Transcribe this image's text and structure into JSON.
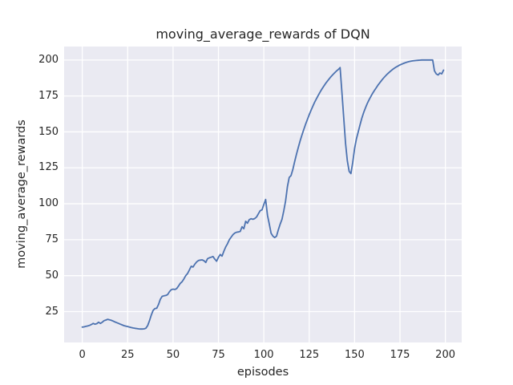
{
  "chart_data": {
    "type": "line",
    "title": "moving_average_rewards of DQN",
    "xlabel": "episodes",
    "ylabel": "moving_average_rewards",
    "x_ticks": [
      0,
      25,
      50,
      75,
      100,
      125,
      150,
      175,
      200
    ],
    "y_ticks": [
      25,
      50,
      75,
      100,
      125,
      150,
      175,
      200
    ],
    "xlim": [
      -10,
      209
    ],
    "ylim": [
      3.5,
      209.4
    ],
    "grid": true,
    "legend": false,
    "colors": {
      "line": "#4c72b0",
      "axes_background": "#eaeaf2",
      "grid": "#ffffff",
      "figure_background": "#ffffff",
      "text": "#262626"
    },
    "series": [
      {
        "name": "moving_average_rewards",
        "x0": 0,
        "dx": 1,
        "y": [
          14.2,
          14.4,
          14.7,
          15.0,
          15.4,
          16.0,
          16.8,
          16.2,
          16.6,
          17.6,
          16.8,
          17.6,
          18.7,
          19.1,
          19.6,
          19.3,
          18.9,
          18.4,
          17.8,
          17.3,
          16.8,
          16.2,
          15.7,
          15.2,
          14.9,
          14.6,
          14.2,
          13.9,
          13.6,
          13.4,
          13.2,
          13.0,
          12.9,
          12.9,
          13.0,
          13.4,
          15.2,
          18.5,
          22.5,
          25.8,
          27.1,
          27.3,
          30.0,
          33.5,
          35.6,
          36.0,
          36.2,
          36.8,
          38.8,
          40.2,
          40.6,
          40.4,
          41.0,
          42.8,
          44.6,
          45.8,
          47.8,
          50.0,
          51.5,
          54.0,
          56.5,
          56.0,
          58.0,
          59.5,
          60.5,
          60.8,
          61.0,
          60.4,
          59.2,
          61.8,
          62.4,
          62.8,
          63.3,
          61.5,
          60.0,
          62.8,
          64.7,
          63.6,
          67.0,
          70.0,
          72.2,
          75.0,
          76.8,
          78.5,
          79.6,
          80.2,
          80.4,
          80.8,
          84.0,
          82.6,
          87.8,
          86.5,
          89.0,
          89.6,
          89.2,
          89.7,
          90.8,
          93.0,
          95.2,
          95.8,
          99.5,
          103.0,
          92.0,
          86.0,
          79.5,
          77.5,
          76.5,
          77.5,
          82.0,
          85.8,
          89.2,
          95.0,
          102.0,
          112.0,
          118.3,
          119.6,
          124.0,
          129.3,
          134.5,
          139.3,
          143.7,
          147.8,
          151.7,
          155.3,
          158.7,
          162.0,
          165.0,
          167.9,
          170.6,
          173.1,
          175.5,
          177.7,
          179.8,
          181.8,
          183.6,
          185.3,
          186.9,
          188.4,
          189.8,
          191.1,
          192.3,
          193.4,
          194.8,
          178.0,
          160.0,
          142.0,
          130.0,
          122.5,
          121.0,
          129.0,
          138.5,
          145.0,
          150.0,
          155.0,
          159.5,
          163.5,
          166.8,
          169.8,
          172.4,
          174.8,
          177.0,
          179.0,
          180.9,
          182.7,
          184.4,
          186.0,
          187.5,
          188.9,
          190.2,
          191.4,
          192.5,
          193.5,
          194.4,
          195.2,
          195.9,
          196.6,
          197.2,
          197.7,
          198.2,
          198.6,
          198.9,
          199.2,
          199.4,
          199.6,
          199.7,
          199.8,
          199.9,
          200.0,
          200.0,
          200.0,
          200.0,
          200.0,
          200.0,
          200.0,
          192.5,
          190.3,
          189.6,
          191.0,
          190.4,
          193.0
        ]
      }
    ]
  }
}
